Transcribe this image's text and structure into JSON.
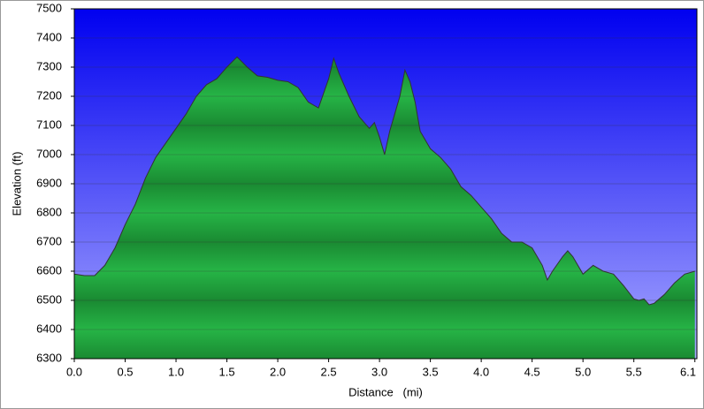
{
  "chart_data": {
    "type": "area",
    "xlabel": "Distance   (mi)",
    "ylabel": "Elevation (ft)",
    "x": [
      0.0,
      0.1,
      0.2,
      0.3,
      0.4,
      0.5,
      0.6,
      0.7,
      0.8,
      0.9,
      1.0,
      1.1,
      1.2,
      1.3,
      1.4,
      1.5,
      1.6,
      1.7,
      1.8,
      1.9,
      2.0,
      2.1,
      2.2,
      2.3,
      2.4,
      2.5,
      2.55,
      2.6,
      2.7,
      2.8,
      2.9,
      2.95,
      3.0,
      3.05,
      3.1,
      3.2,
      3.25,
      3.3,
      3.35,
      3.4,
      3.5,
      3.6,
      3.7,
      3.8,
      3.9,
      4.0,
      4.1,
      4.2,
      4.3,
      4.4,
      4.5,
      4.6,
      4.65,
      4.7,
      4.8,
      4.85,
      4.9,
      5.0,
      5.1,
      5.2,
      5.3,
      5.4,
      5.5,
      5.55,
      5.6,
      5.65,
      5.7,
      5.8,
      5.9,
      6.0,
      6.1
    ],
    "values": [
      6590,
      6585,
      6585,
      6620,
      6680,
      6760,
      6830,
      6920,
      6990,
      7040,
      7090,
      7140,
      7200,
      7240,
      7260,
      7300,
      7335,
      7300,
      7270,
      7265,
      7255,
      7250,
      7230,
      7180,
      7160,
      7260,
      7330,
      7280,
      7200,
      7130,
      7090,
      7110,
      7060,
      7000,
      7080,
      7200,
      7290,
      7250,
      7180,
      7080,
      7020,
      6990,
      6950,
      6890,
      6860,
      6820,
      6780,
      6730,
      6700,
      6700,
      6680,
      6620,
      6570,
      6600,
      6650,
      6670,
      6650,
      6590,
      6620,
      6600,
      6590,
      6550,
      6505,
      6500,
      6505,
      6485,
      6490,
      6520,
      6560,
      6590,
      6600
    ],
    "color": "#1fa53a",
    "xlim": [
      0,
      6.12
    ],
    "ylim": [
      6300,
      7500
    ],
    "xticks": [
      {
        "value": 0,
        "label": "0.0"
      },
      0.5,
      {
        "value": 1,
        "label": "1.0"
      },
      1.5,
      {
        "value": 2,
        "label": "2.0"
      },
      2.5,
      {
        "value": 3,
        "label": "3.0"
      },
      3.5,
      {
        "value": 4,
        "label": "4.0"
      },
      4.5,
      {
        "value": 5,
        "label": "5.0"
      },
      5.5,
      6.1
    ],
    "yticks": [
      6300,
      6400,
      6500,
      6600,
      6700,
      6800,
      6900,
      7000,
      7100,
      7200,
      7300,
      7400,
      7500
    ],
    "grid": true
  }
}
